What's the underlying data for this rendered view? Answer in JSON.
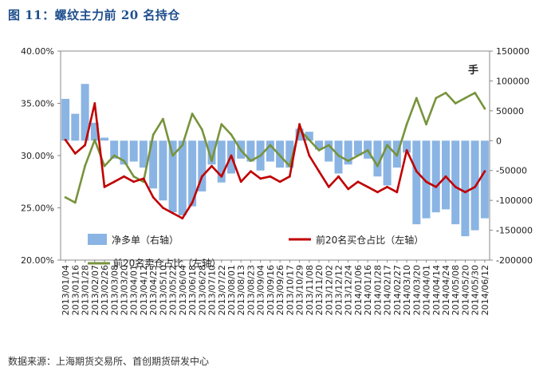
{
  "figure": {
    "title": "图 11：螺纹主力前 20 名持仓",
    "source": "数据来源：上海期货交易所、首创期货研发中心"
  },
  "chart_data": {
    "type": "bar+line",
    "unit_label": "手",
    "left_axis": {
      "ticks": [
        "20.00%",
        "25.00%",
        "30.00%",
        "35.00%",
        "40.00%"
      ],
      "range": [
        20,
        40
      ],
      "unit": "%"
    },
    "right_axis": {
      "ticks": [
        "-200000",
        "-150000",
        "-100000",
        "-50000",
        "0",
        "50000",
        "100000",
        "150000"
      ],
      "range": [
        -200000,
        150000
      ]
    },
    "x_ticks": [
      "2013/01/04",
      "2013/01/16",
      "2013/01/28",
      "2013/02/07",
      "2013/02/26",
      "2013/03/08",
      "2013/03/20",
      "2013/04/01",
      "2013/04/12",
      "2013/04/25",
      "2013/05/10",
      "2013/05/22",
      "2013/06/04",
      "2013/06/18",
      "2013/06/28",
      "2013/07/10",
      "2013/07/22",
      "2013/08/01",
      "2013/08/13",
      "2013/08/23",
      "2013/09/04",
      "2013/09/16",
      "2013/09/26",
      "2013/10/17",
      "2013/10/29",
      "2013/11/08",
      "2013/11/20",
      "2013/12/02",
      "2013/12/12",
      "2013/12/24",
      "2014/01/06",
      "2014/01/16",
      "2014/01/28",
      "2014/02/17",
      "2014/02/27",
      "2014/03/10",
      "2014/03/20",
      "2014/04/01",
      "2014/04/14",
      "2014/04/24",
      "2014/05/08",
      "2014/05/20",
      "2014/05/30",
      "2014/06/12"
    ],
    "legend": {
      "net_long": "净多单（右轴）",
      "buy_ratio": "前20名买仓占比（左轴）",
      "sell_ratio": "前20名卖仓占比（左轴）"
    },
    "colors": {
      "net_long": "#8ab4e3",
      "buy_ratio": "#c00000",
      "sell_ratio": "#77933c"
    },
    "series": [
      {
        "name": "净多单（右轴）",
        "axis": "right",
        "type": "bar",
        "x": [
          "2013/01/04",
          "2013/01/16",
          "2013/01/28",
          "2013/02/07",
          "2013/02/26",
          "2013/03/08",
          "2013/03/20",
          "2013/04/01",
          "2013/04/12",
          "2013/04/25",
          "2013/05/10",
          "2013/05/22",
          "2013/06/04",
          "2013/06/18",
          "2013/06/28",
          "2013/07/10",
          "2013/07/22",
          "2013/08/01",
          "2013/08/13",
          "2013/08/23",
          "2013/09/04",
          "2013/09/16",
          "2013/09/26",
          "2013/10/17",
          "2013/10/29",
          "2013/11/08",
          "2013/11/20",
          "2013/12/02",
          "2013/12/12",
          "2013/12/24",
          "2014/01/06",
          "2014/01/16",
          "2014/01/28",
          "2014/02/17",
          "2014/02/27",
          "2014/03/10",
          "2014/03/20",
          "2014/04/01",
          "2014/04/14",
          "2014/04/24",
          "2014/05/08",
          "2014/05/20",
          "2014/05/30",
          "2014/06/12"
        ],
        "values": [
          70000,
          45000,
          95000,
          30000,
          5000,
          -30000,
          -40000,
          -35000,
          -45000,
          -80000,
          -100000,
          -120000,
          -125000,
          -110000,
          -85000,
          -40000,
          -70000,
          -55000,
          -30000,
          -35000,
          -50000,
          -35000,
          -45000,
          -45000,
          20000,
          15000,
          -15000,
          -35000,
          -55000,
          -40000,
          -25000,
          -30000,
          -60000,
          -75000,
          -45000,
          -20000,
          -140000,
          -130000,
          -120000,
          -115000,
          -140000,
          -160000,
          -150000,
          -130000
        ]
      },
      {
        "name": "前20名买仓占比（左轴）",
        "axis": "left",
        "type": "line",
        "x": [
          "2013/01/04",
          "2013/01/16",
          "2013/01/28",
          "2013/02/07",
          "2013/02/26",
          "2013/03/08",
          "2013/03/20",
          "2013/04/01",
          "2013/04/12",
          "2013/04/25",
          "2013/05/10",
          "2013/05/22",
          "2013/06/04",
          "2013/06/18",
          "2013/06/28",
          "2013/07/10",
          "2013/07/22",
          "2013/08/01",
          "2013/08/13",
          "2013/08/23",
          "2013/09/04",
          "2013/09/16",
          "2013/09/26",
          "2013/10/17",
          "2013/10/29",
          "2013/11/08",
          "2013/11/20",
          "2013/12/02",
          "2013/12/12",
          "2013/12/24",
          "2014/01/06",
          "2014/01/16",
          "2014/01/28",
          "2014/02/17",
          "2014/02/27",
          "2014/03/10",
          "2014/03/20",
          "2014/04/01",
          "2014/04/14",
          "2014/04/24",
          "2014/05/08",
          "2014/05/20",
          "2014/05/30",
          "2014/06/12"
        ],
        "values": [
          31.5,
          30.2,
          31.0,
          35.0,
          27.0,
          27.5,
          28.0,
          27.5,
          27.8,
          26.0,
          25.0,
          24.5,
          24.0,
          25.5,
          28.0,
          29.0,
          28.0,
          30.0,
          27.5,
          28.5,
          27.8,
          28.0,
          27.5,
          28.0,
          33.0,
          30.0,
          28.5,
          27.0,
          28.0,
          26.8,
          27.5,
          27.0,
          26.5,
          27.0,
          26.5,
          30.5,
          28.5,
          27.5,
          27.0,
          28.0,
          27.0,
          26.5,
          27.0,
          28.5
        ]
      },
      {
        "name": "前20名卖仓占比（左轴）",
        "axis": "left",
        "type": "line",
        "x": [
          "2013/01/04",
          "2013/01/16",
          "2013/01/28",
          "2013/02/07",
          "2013/02/26",
          "2013/03/08",
          "2013/03/20",
          "2013/04/01",
          "2013/04/12",
          "2013/04/25",
          "2013/05/10",
          "2013/05/22",
          "2013/06/04",
          "2013/06/18",
          "2013/06/28",
          "2013/07/10",
          "2013/07/22",
          "2013/08/01",
          "2013/08/13",
          "2013/08/23",
          "2013/09/04",
          "2013/09/16",
          "2013/09/26",
          "2013/10/17",
          "2013/10/29",
          "2013/11/08",
          "2013/11/20",
          "2013/12/02",
          "2013/12/12",
          "2013/12/24",
          "2014/01/06",
          "2014/01/16",
          "2014/01/28",
          "2014/02/17",
          "2014/02/27",
          "2014/03/10",
          "2014/03/20",
          "2014/04/01",
          "2014/04/14",
          "2014/04/24",
          "2014/05/08",
          "2014/05/20",
          "2014/05/30",
          "2014/06/12"
        ],
        "values": [
          26.0,
          25.5,
          29.0,
          31.5,
          29.0,
          30.0,
          29.5,
          28.0,
          27.5,
          32.0,
          33.5,
          30.0,
          31.0,
          34.0,
          32.5,
          29.5,
          33.0,
          32.0,
          30.5,
          29.5,
          30.0,
          31.0,
          30.0,
          29.0,
          32.5,
          31.5,
          30.5,
          31.0,
          30.0,
          29.5,
          30.0,
          30.5,
          29.0,
          31.0,
          30.0,
          33.0,
          35.5,
          33.0,
          35.5,
          36.0,
          35.0,
          35.5,
          36.0,
          34.5
        ]
      }
    ]
  }
}
